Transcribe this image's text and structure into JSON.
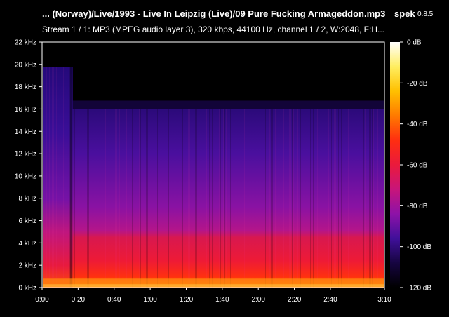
{
  "header": {
    "title": "... (Norway)/Live/1993 - Live In Leipzig (Live)/09 Pure Fucking Armageddon.mp3",
    "app_name": "spek",
    "app_version": "0.8.5",
    "stream_info": "Stream 1 / 1: MP3 (MPEG audio layer 3), 320 kbps, 44100 Hz, channel 1 / 2, W:2048, F:H..."
  },
  "frequency_axis": {
    "unit": "kHz",
    "ticks": [
      "0 kHz",
      "2 kHz",
      "4 kHz",
      "6 kHz",
      "8 kHz",
      "10 kHz",
      "12 kHz",
      "14 kHz",
      "16 kHz",
      "18 kHz",
      "20 kHz",
      "22 kHz"
    ],
    "values": [
      0,
      2,
      4,
      6,
      8,
      10,
      12,
      14,
      16,
      18,
      20,
      22
    ],
    "range": [
      0,
      22
    ]
  },
  "time_axis": {
    "ticks": [
      "0:00",
      "0:20",
      "0:40",
      "1:00",
      "1:20",
      "1:40",
      "2:00",
      "2:20",
      "2:40",
      "3:10"
    ],
    "seconds": [
      0,
      20,
      40,
      60,
      80,
      100,
      120,
      140,
      160,
      190
    ],
    "range": [
      0,
      190
    ]
  },
  "level_scale": {
    "unit": "dB",
    "ticks": [
      "0 dB",
      "-20 dB",
      "-40 dB",
      "-60 dB",
      "-80 dB",
      "-100 dB",
      "-120 dB"
    ],
    "values": [
      0,
      -20,
      -40,
      -60,
      -80,
      -100,
      -120
    ],
    "range": [
      -120,
      0
    ]
  },
  "spectrogram": {
    "cutoff_khz_intro": 19.8,
    "cutoff_khz_main": 16.0,
    "intro_end_seconds": 17,
    "colors": {
      "background": "#000000",
      "gradient": [
        "#000000",
        "#160540",
        "#40109a",
        "#8d12a8",
        "#c8157a",
        "#ea1a3c",
        "#ff2e10",
        "#ff7a00",
        "#ffc000",
        "#ffee60",
        "#ffffff"
      ]
    }
  }
}
